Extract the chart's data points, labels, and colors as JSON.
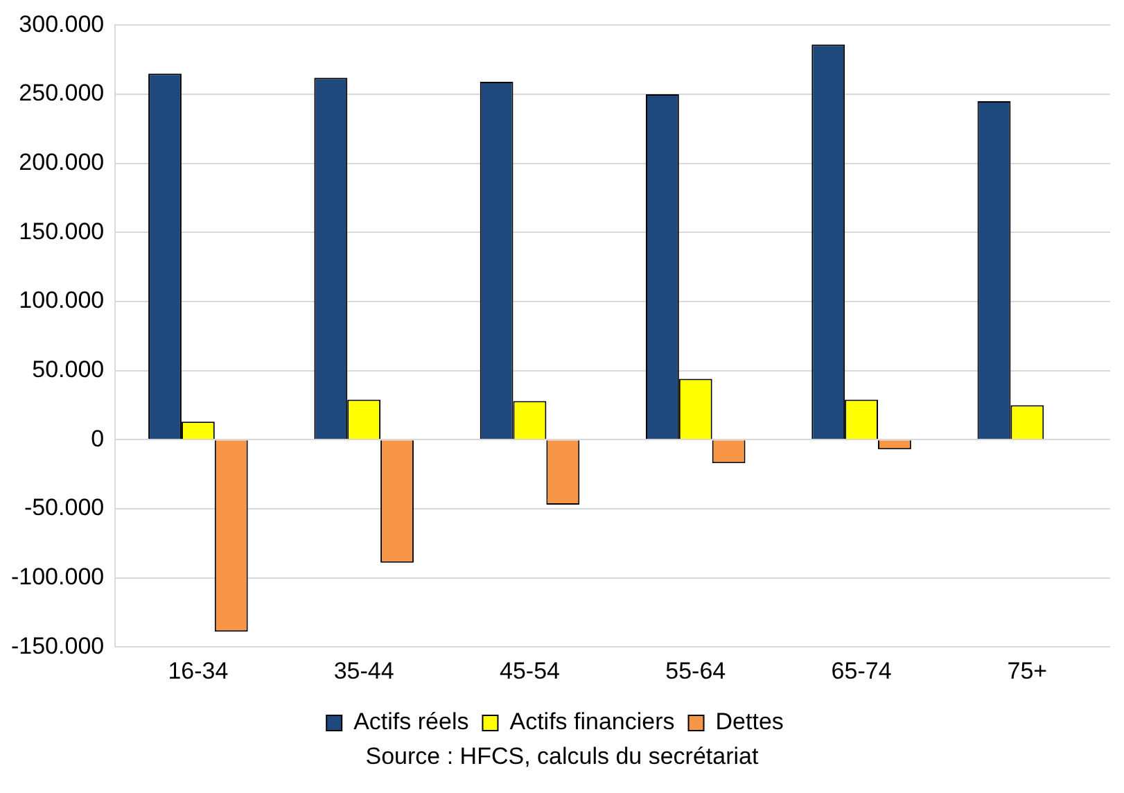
{
  "chart_data": {
    "type": "bar",
    "categories": [
      "16-34",
      "35-44",
      "45-54",
      "55-64",
      "65-74",
      "75+"
    ],
    "series": [
      {
        "name": "Actifs réels",
        "color": "#1f497d",
        "values": [
          265000,
          262000,
          259000,
          250000,
          286000,
          245000
        ]
      },
      {
        "name": "Actifs financiers",
        "color": "#ffff00",
        "values": [
          13000,
          29000,
          28000,
          44000,
          29000,
          25000
        ]
      },
      {
        "name": "Dettes",
        "color": "#f79646",
        "values": [
          -139000,
          -89000,
          -47000,
          -17000,
          -7000,
          0
        ]
      }
    ],
    "ylim": [
      -150000,
      300000
    ],
    "yticks": [
      {
        "value": -150000,
        "label": "-150.000"
      },
      {
        "value": -100000,
        "label": "-100.000"
      },
      {
        "value": -50000,
        "label": "-50.000"
      },
      {
        "value": 0,
        "label": "0"
      },
      {
        "value": 50000,
        "label": "50.000"
      },
      {
        "value": 100000,
        "label": "100.000"
      },
      {
        "value": 150000,
        "label": "150.000"
      },
      {
        "value": 200000,
        "label": "200.000"
      },
      {
        "value": 250000,
        "label": "250.000"
      },
      {
        "value": 300000,
        "label": "300.000"
      }
    ],
    "grid": "y",
    "legend": "bottom",
    "annotations": [
      "Source : HFCS, calculs du secrétariat"
    ]
  }
}
